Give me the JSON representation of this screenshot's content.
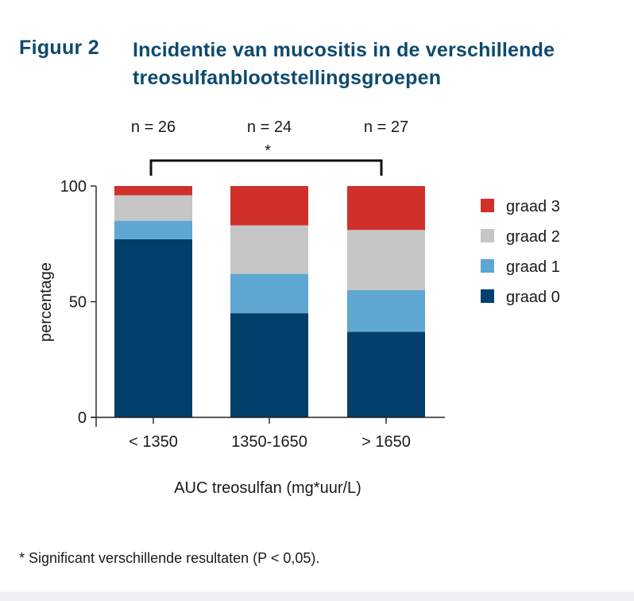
{
  "figure": {
    "label": "Figuur 2",
    "title": "Incidentie van mucositis in de verschillende treosulfanblootstellingsgroepen"
  },
  "footnote": "* Significant verschillende resultaten (P < 0,05).",
  "chart_data": {
    "type": "bar",
    "stacked": true,
    "categories": [
      "< 1350",
      "1350-1650",
      "> 1650"
    ],
    "n_labels": [
      "n = 26",
      "n = 24",
      "n = 27"
    ],
    "significance": {
      "label": "*",
      "from": 0,
      "to": 2
    },
    "series": [
      {
        "name": "graad 0",
        "color": "#003f6b",
        "values": [
          77,
          45,
          37
        ]
      },
      {
        "name": "graad 1",
        "color": "#5ea7d2",
        "values": [
          8,
          17,
          18
        ]
      },
      {
        "name": "graad 2",
        "color": "#c6c6c6",
        "values": [
          11,
          21,
          26
        ]
      },
      {
        "name": "graad 3",
        "color": "#d0302a",
        "values": [
          4,
          17,
          19
        ]
      }
    ],
    "xlabel": "AUC treosulfan (mg*uur/L)",
    "ylabel": "percentage",
    "ylim": [
      0,
      100
    ],
    "yticks": [
      0,
      50,
      100
    ],
    "legend_position": "right"
  }
}
